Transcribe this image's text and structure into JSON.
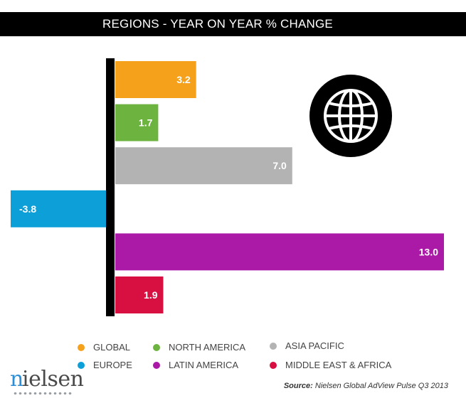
{
  "colors": {
    "global": "#f5a11c",
    "north_america": "#6cb33f",
    "asia_pacific": "#b3b3b3",
    "europe": "#0d9fd8",
    "latin_america": "#aa1aa6",
    "middle_east_africa": "#d81041"
  },
  "chart_data": {
    "type": "bar",
    "orientation": "horizontal",
    "title": "REGIONS - YEAR ON YEAR % CHANGE",
    "categories": [
      "GLOBAL",
      "NORTH AMERICA",
      "ASIA PACIFIC",
      "EUROPE",
      "LATIN AMERICA",
      "MIDDLE EAST & AFRICA"
    ],
    "values": [
      3.2,
      1.7,
      7.0,
      -3.8,
      13.0,
      1.9
    ],
    "labels": [
      "3.2",
      "1.7",
      "7.0",
      "-3.8",
      "13.0",
      "1.9"
    ],
    "xlim": [
      -4.2,
      13.3
    ],
    "unit": "%",
    "grid": false,
    "legend_position": "bottom"
  },
  "legend": [
    {
      "label": "GLOBAL",
      "color": "#f5a11c"
    },
    {
      "label": "NORTH AMERICA",
      "color": "#6cb33f"
    },
    {
      "label": "ASIA PACIFIC",
      "color": "#b3b3b3"
    },
    {
      "label": "EUROPE",
      "color": "#0d9fd8"
    },
    {
      "label": "LATIN AMERICA",
      "color": "#aa1aa6"
    },
    {
      "label": "MIDDLE EAST & AFRICA",
      "color": "#d81041"
    }
  ],
  "globe_icon": "globe-icon",
  "logo": {
    "text": "nielsen"
  },
  "source": {
    "prefix": "Source:",
    "text": "Nielsen Global AdView Pulse Q3 2013"
  }
}
